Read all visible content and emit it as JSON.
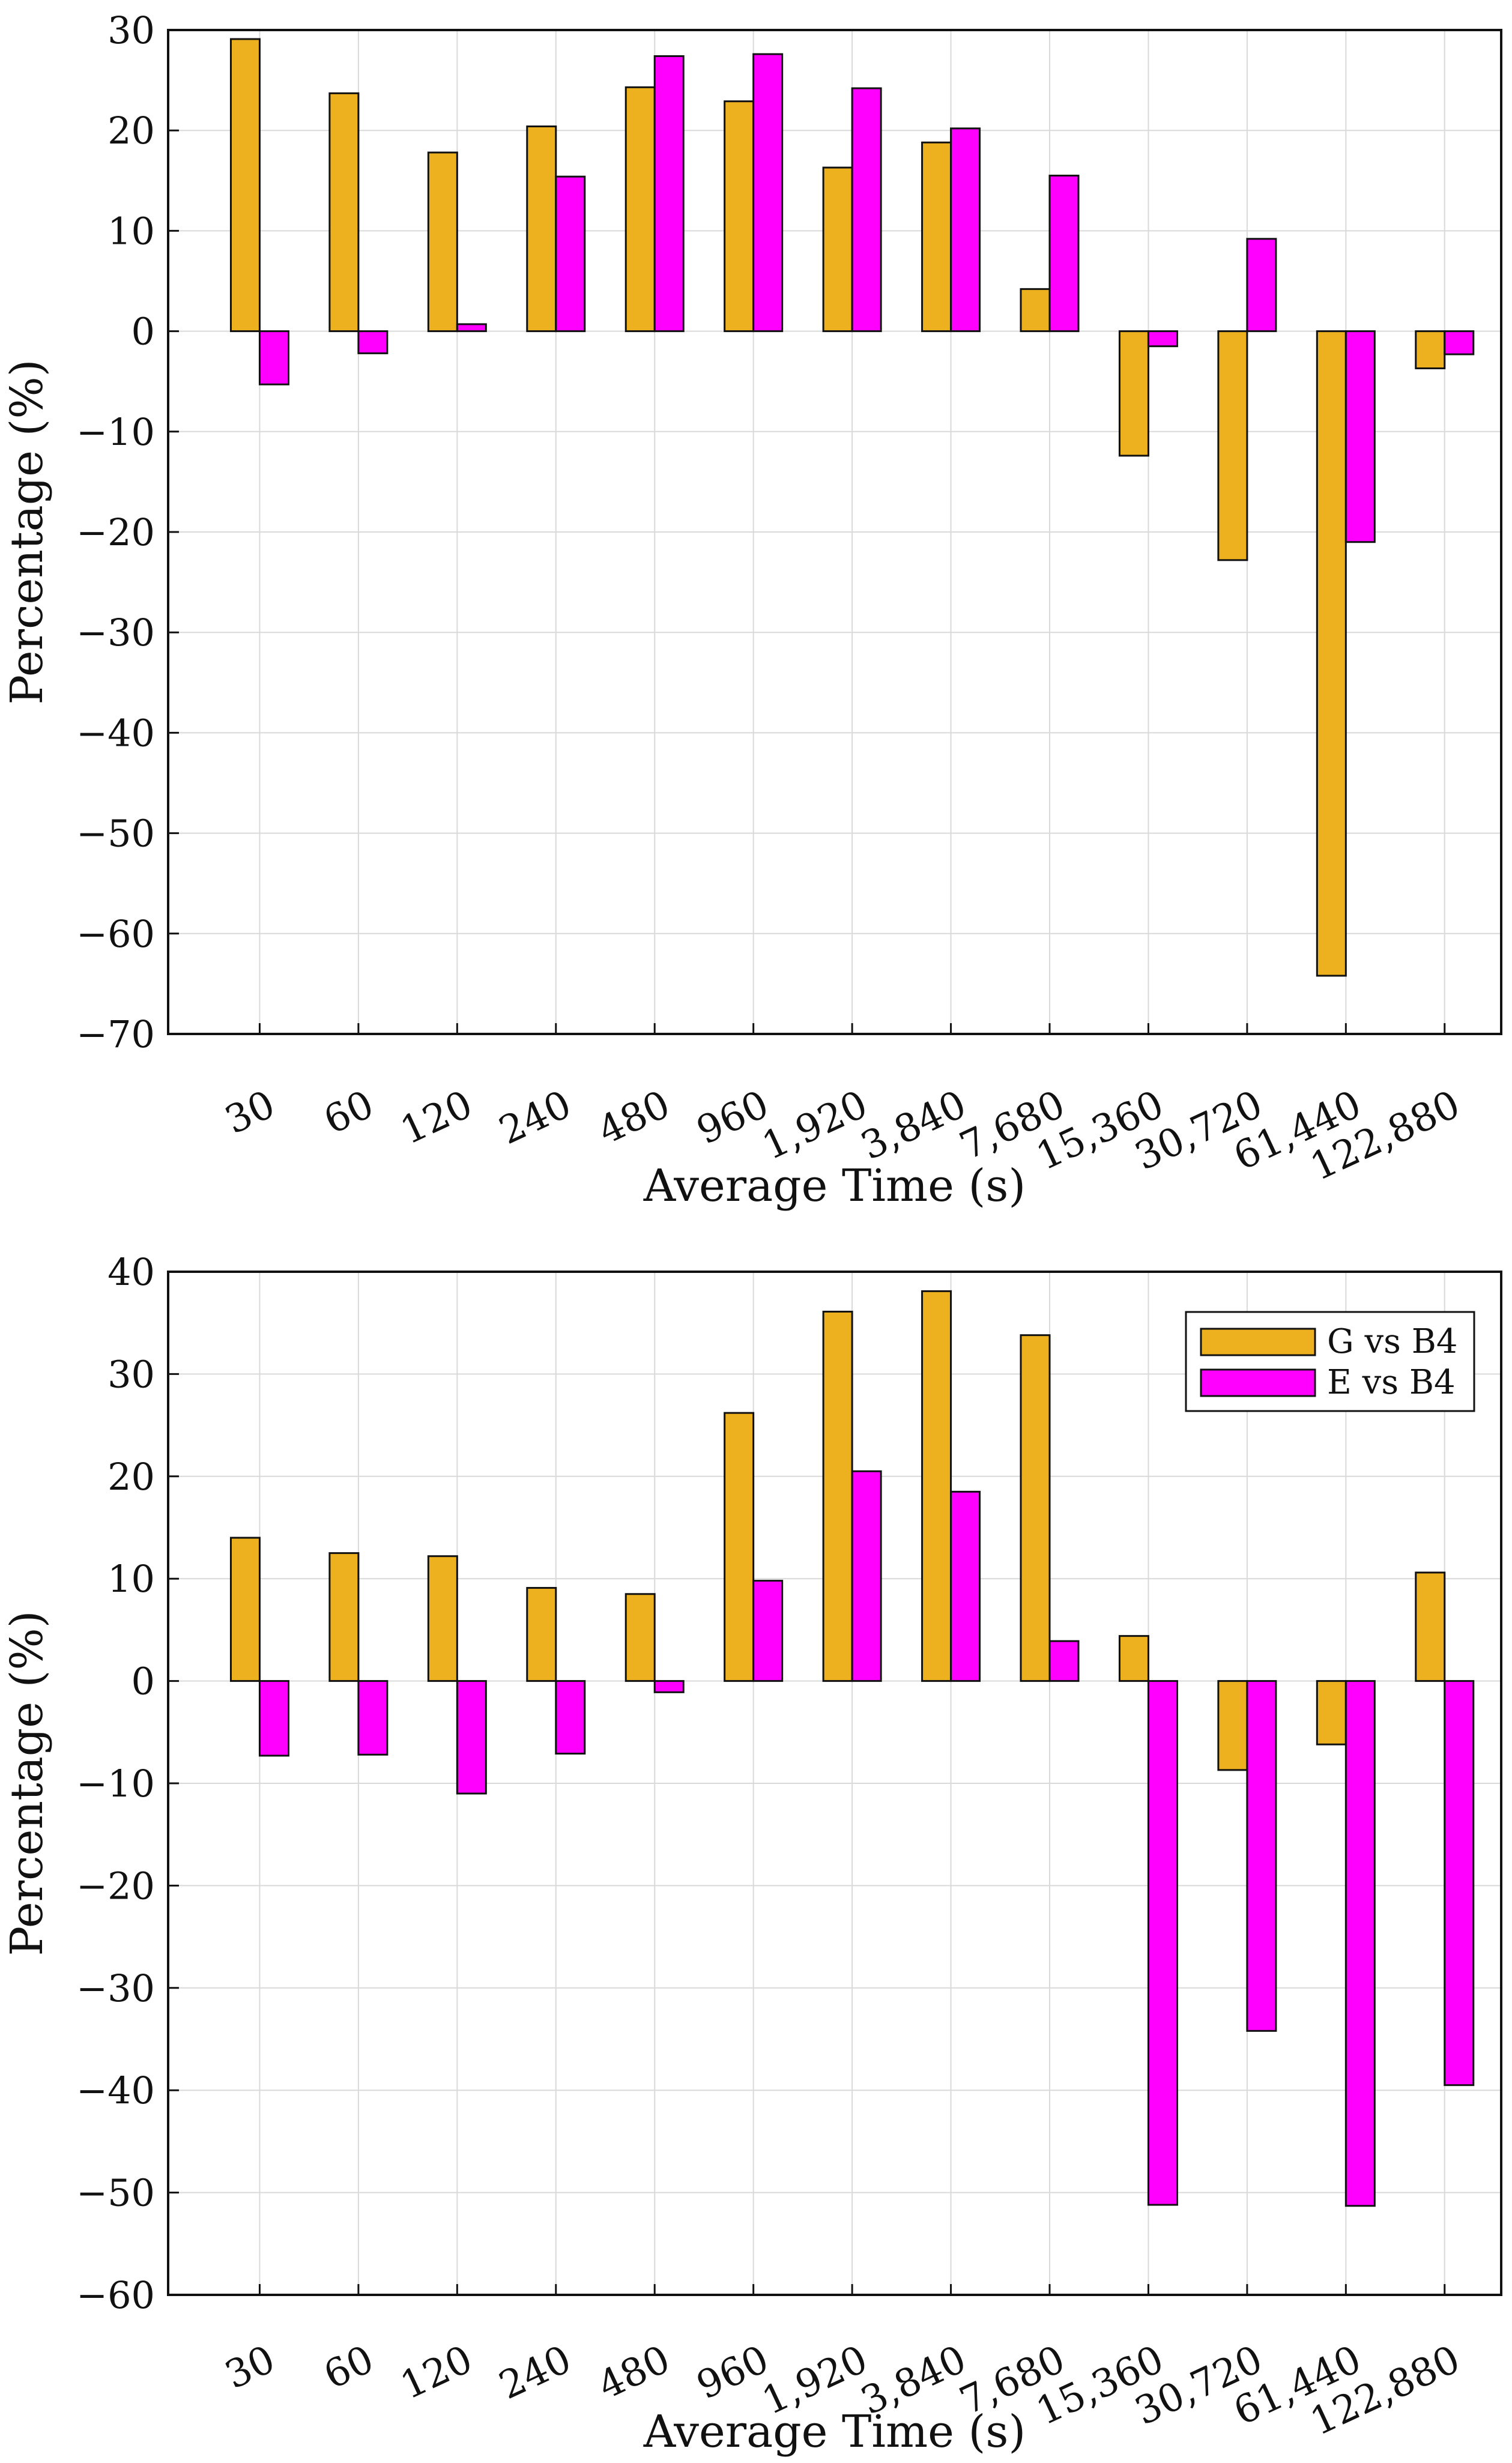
{
  "colors": {
    "series_g": "#EDB120",
    "series_e": "#FF00FF",
    "grid": "#d9d9d9",
    "axis": "#111111",
    "bar_edge": "#111111"
  },
  "chart_data": [
    {
      "type": "bar",
      "title": "",
      "xlabel": "Average Time (s)",
      "ylabel": "Percentage (%)",
      "ylim": [
        -70,
        30
      ],
      "yticks": [
        30,
        20,
        10,
        0,
        -10,
        -20,
        -30,
        -40,
        -50,
        -60,
        -70
      ],
      "ytick_labels": [
        "30",
        "20",
        "10",
        "0",
        "−10",
        "−20",
        "−30",
        "−40",
        "−50",
        "−60",
        "−70"
      ],
      "grid": true,
      "legend": null,
      "categories": [
        "30",
        "60",
        "120",
        "240",
        "480",
        "960",
        "1,920",
        "3,840",
        "7,680",
        "15,360",
        "30,720",
        "61,440",
        "122,880"
      ],
      "series": [
        {
          "name": "G vs B4",
          "color": "#EDB120",
          "values": [
            29.1,
            23.7,
            17.8,
            20.4,
            24.3,
            22.9,
            16.3,
            18.8,
            4.2,
            -12.4,
            -22.8,
            -64.2,
            -3.7
          ]
        },
        {
          "name": "E vs B4",
          "color": "#FF00FF",
          "values": [
            -5.3,
            -2.2,
            0.7,
            15.4,
            27.4,
            27.6,
            24.2,
            20.2,
            15.5,
            -1.5,
            9.2,
            -21.0,
            -2.3
          ]
        }
      ]
    },
    {
      "type": "bar",
      "title": "",
      "xlabel": "Average Time (s)",
      "ylabel": "Percentage (%)",
      "ylim": [
        -60,
        40
      ],
      "yticks": [
        40,
        30,
        20,
        10,
        0,
        -10,
        -20,
        -30,
        -40,
        -50,
        -60
      ],
      "ytick_labels": [
        "40",
        "30",
        "20",
        "10",
        "0",
        "−10",
        "−20",
        "−30",
        "−40",
        "−50",
        "−60"
      ],
      "grid": true,
      "legend": {
        "placement": "top-right",
        "entries": [
          "G vs B4",
          "E vs B4"
        ]
      },
      "categories": [
        "30",
        "60",
        "120",
        "240",
        "480",
        "960",
        "1,920",
        "3,840",
        "7,680",
        "15,360",
        "30,720",
        "61,440",
        "122,880"
      ],
      "series": [
        {
          "name": "G vs B4",
          "color": "#EDB120",
          "values": [
            14.0,
            12.5,
            12.2,
            9.1,
            8.5,
            26.2,
            36.1,
            38.1,
            33.8,
            4.4,
            -8.7,
            -6.2,
            10.6
          ]
        },
        {
          "name": "E vs B4",
          "color": "#FF00FF",
          "values": [
            -7.3,
            -7.2,
            -11.0,
            -7.1,
            -1.1,
            9.8,
            20.5,
            18.5,
            3.9,
            -51.2,
            -34.2,
            -51.3,
            -39.5
          ]
        }
      ]
    }
  ]
}
